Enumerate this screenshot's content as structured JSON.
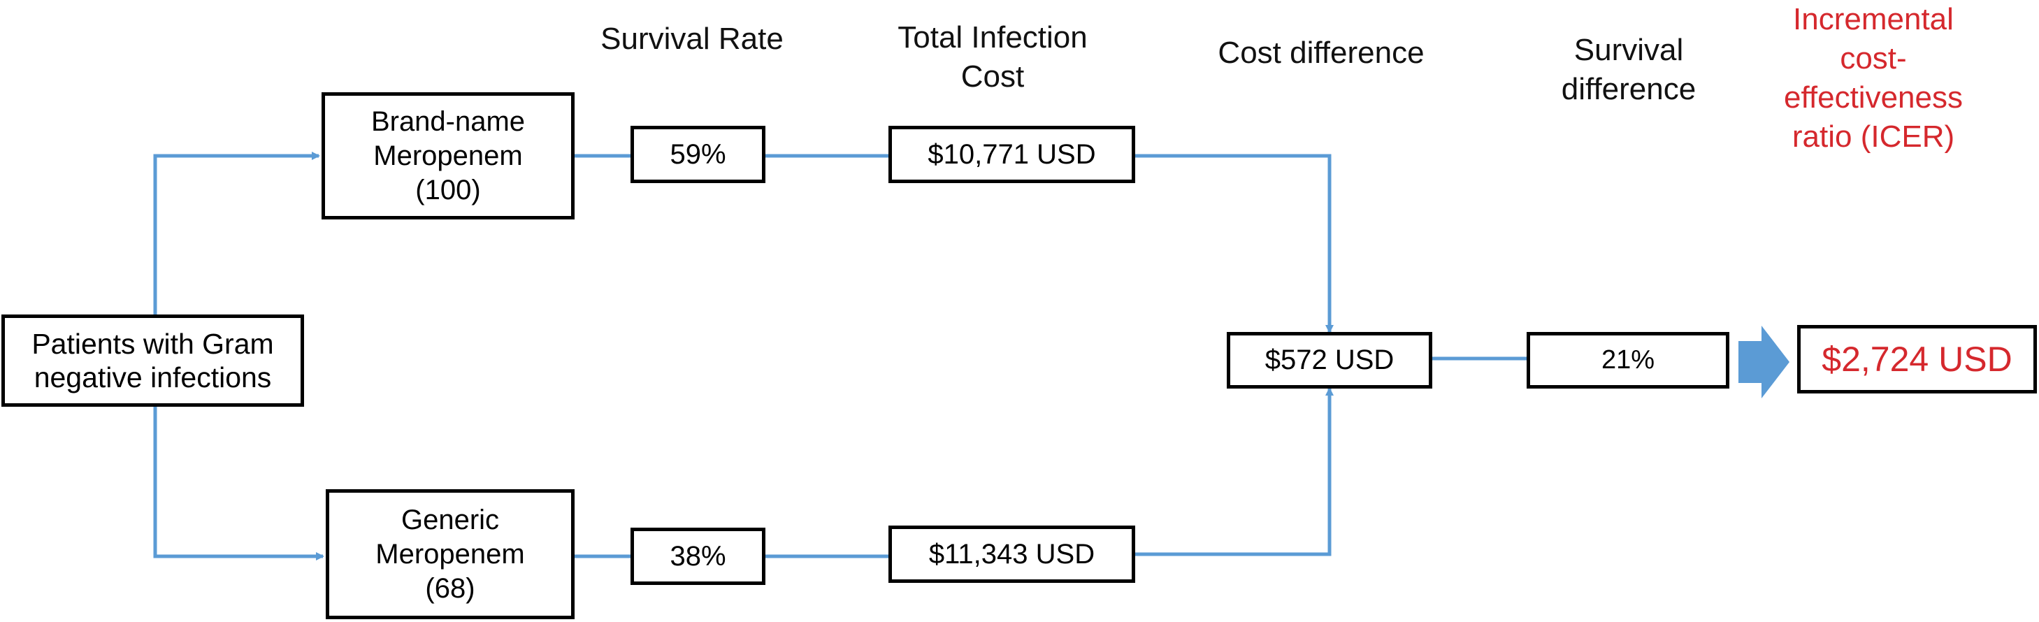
{
  "headers": {
    "survival_rate": "Survival Rate",
    "total_infection_cost": "Total Infection\nCost",
    "cost_difference": "Cost difference",
    "survival_difference": "Survival\ndifference",
    "icer": "Incremental\ncost-\neffectiveness\nratio (ICER)"
  },
  "nodes": {
    "patients": "Patients with Gram\nnegative infections",
    "brand": "Brand-name\nMeropenem\n(100)",
    "generic": "Generic\nMeropenem\n(68)",
    "brand_survival": "59%",
    "generic_survival": "38%",
    "brand_cost": "$10,771 USD",
    "generic_cost": "$11,343 USD",
    "cost_difference": "$572 USD",
    "survival_difference": "21%",
    "icer": "$2,724 USD"
  },
  "colors": {
    "connector": "#5b9bd5",
    "accent_red": "#d5282d",
    "border": "#000000"
  },
  "icons": {
    "result_arrow": "right-block-arrow-icon"
  }
}
